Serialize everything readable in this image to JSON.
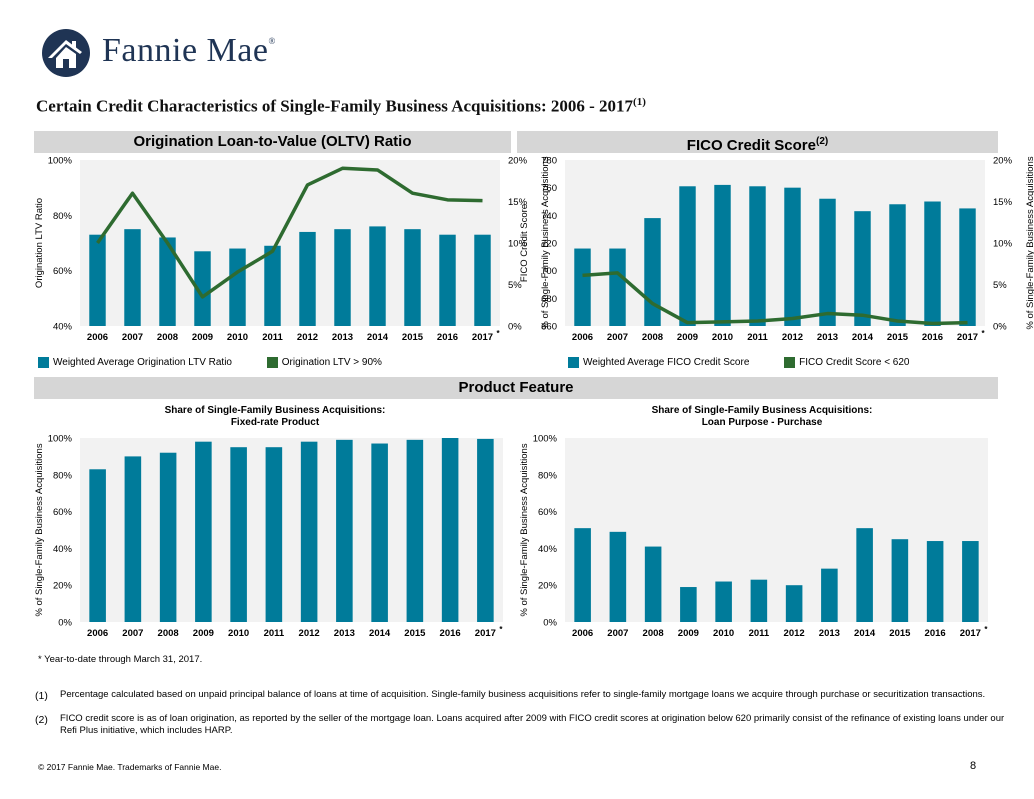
{
  "brand": {
    "name": "Fannie Mae",
    "reg": "®",
    "color": "#1f3454"
  },
  "title": {
    "text": "Certain Credit Characteristics of Single-Family Business Acquisitions: 2006 - 2017",
    "sup": "(1)"
  },
  "sections": {
    "oltv_header": "Origination Loan-to-Value (OLTV) Ratio",
    "fico_header": "FICO Credit Score",
    "fico_header_sup": "(2)",
    "product_header": "Product Feature"
  },
  "colors": {
    "bar": "#007b9a",
    "line": "#2e6b30",
    "header_bg": "#d6d6d6",
    "plot_bg": "#f2f2f2"
  },
  "legends": {
    "oltv_bar": "Weighted Average Origination LTV Ratio",
    "oltv_line": "Origination LTV > 90%",
    "fico_bar": "Weighted Average FICO Credit Score",
    "fico_line": "FICO Credit Score < 620"
  },
  "subtitles": {
    "fixed_line1": "Share of Single-Family Business Acquisitions:",
    "fixed_line2": "Fixed-rate Product",
    "purchase_line1": "Share of Single-Family Business Acquisitions:",
    "purchase_line2": "Loan Purpose - Purchase"
  },
  "chart_data": [
    {
      "id": "oltv",
      "type": "bar+line",
      "categories": [
        "2006",
        "2007",
        "2008",
        "2009",
        "2010",
        "2011",
        "2012",
        "2013",
        "2014",
        "2015",
        "2016",
        "2017"
      ],
      "last_marker": "*",
      "series": [
        {
          "name": "Weighted Average Origination LTV Ratio",
          "axis": "left",
          "kind": "bar",
          "values": [
            73,
            75,
            72,
            67,
            68,
            69,
            74,
            75,
            76,
            75,
            73,
            73
          ]
        },
        {
          "name": "Origination LTV > 90%",
          "axis": "right",
          "kind": "line",
          "values": [
            10,
            16,
            10,
            3.5,
            6.5,
            9,
            17,
            19,
            18.8,
            16,
            15.2,
            15.1
          ]
        }
      ],
      "left_axis": {
        "label": "Origination LTV Ratio",
        "min": 40,
        "max": 100,
        "ticks": [
          40,
          60,
          80,
          100
        ],
        "tick_labels": [
          "40%",
          "60%",
          "80%",
          "100%"
        ]
      },
      "right_axis": {
        "label": "% of Single-Family Business Acquisitions",
        "min": 0,
        "max": 20,
        "ticks": [
          0,
          5,
          10,
          15,
          20
        ],
        "tick_labels": [
          "0%",
          "5%",
          "10%",
          "15%",
          "20%"
        ]
      }
    },
    {
      "id": "fico",
      "type": "bar+line",
      "categories": [
        "2006",
        "2007",
        "2008",
        "2009",
        "2010",
        "2011",
        "2012",
        "2013",
        "2014",
        "2015",
        "2016",
        "2017"
      ],
      "last_marker": "*",
      "series": [
        {
          "name": "Weighted Average FICO Credit Score",
          "axis": "left",
          "kind": "bar",
          "values": [
            716,
            716,
            738,
            761,
            762,
            761,
            760,
            752,
            743,
            748,
            750,
            745
          ]
        },
        {
          "name": "FICO Credit Score < 620",
          "axis": "right",
          "kind": "line",
          "values": [
            6.1,
            6.4,
            2.7,
            0.4,
            0.5,
            0.6,
            0.9,
            1.5,
            1.3,
            0.6,
            0.3,
            0.4
          ]
        }
      ],
      "left_axis": {
        "label": "FICO Credit Score",
        "min": 660,
        "max": 780,
        "ticks": [
          660,
          680,
          700,
          720,
          740,
          760,
          780
        ],
        "tick_labels": [
          "660",
          "680",
          "700",
          "720",
          "740",
          "760",
          "780"
        ]
      },
      "right_axis": {
        "label": "% of Single-Family Business Acquisitions",
        "min": 0,
        "max": 20,
        "ticks": [
          0,
          5,
          10,
          15,
          20
        ],
        "tick_labels": [
          "0%",
          "5%",
          "10%",
          "15%",
          "20%"
        ]
      }
    },
    {
      "id": "fixed",
      "type": "bar",
      "title": "Share of Single-Family Business Acquisitions: Fixed-rate Product",
      "categories": [
        "2006",
        "2007",
        "2008",
        "2009",
        "2010",
        "2011",
        "2012",
        "2013",
        "2014",
        "2015",
        "2016",
        "2017"
      ],
      "last_marker": "*",
      "values": [
        83,
        90,
        92,
        98,
        95,
        95,
        98,
        99,
        97,
        99,
        100,
        99.5
      ],
      "left_axis": {
        "label": "% of Single-Family Business Acquisitions",
        "min": 0,
        "max": 100,
        "ticks": [
          0,
          20,
          40,
          60,
          80,
          100
        ],
        "tick_labels": [
          "0%",
          "20%",
          "40%",
          "60%",
          "80%",
          "100%"
        ]
      }
    },
    {
      "id": "purchase",
      "type": "bar",
      "title": "Share of Single-Family Business Acquisitions: Loan Purpose - Purchase",
      "categories": [
        "2006",
        "2007",
        "2008",
        "2009",
        "2010",
        "2011",
        "2012",
        "2013",
        "2014",
        "2015",
        "2016",
        "2017"
      ],
      "last_marker": "*",
      "values": [
        51,
        49,
        41,
        19,
        22,
        23,
        20,
        29,
        51,
        45,
        44,
        44
      ],
      "left_axis": {
        "label": "% of Single-Family Business Acquisitions",
        "min": 0,
        "max": 100,
        "ticks": [
          0,
          20,
          40,
          60,
          80,
          100
        ],
        "tick_labels": [
          "0%",
          "20%",
          "40%",
          "60%",
          "80%",
          "100%"
        ]
      }
    }
  ],
  "notes": {
    "ytd": "* Year-to-date through March 31, 2017.",
    "fn1_num": "(1)",
    "fn1_text": "Percentage calculated based on unpaid principal balance of loans at time of acquisition. Single-family business acquisitions refer to single-family mortgage loans we acquire through purchase or securitization transactions.",
    "fn2_num": "(2)",
    "fn2_text": "FICO credit score is as of loan origination, as reported by the seller of the mortgage loan. Loans acquired after 2009 with FICO credit scores at origination below 620 primarily consist of the refinance of existing loans under our Refi Plus initiative, which includes HARP."
  },
  "footer": {
    "copyright": "© 2017 Fannie Mae. Trademarks of Fannie Mae.",
    "page": "8"
  }
}
